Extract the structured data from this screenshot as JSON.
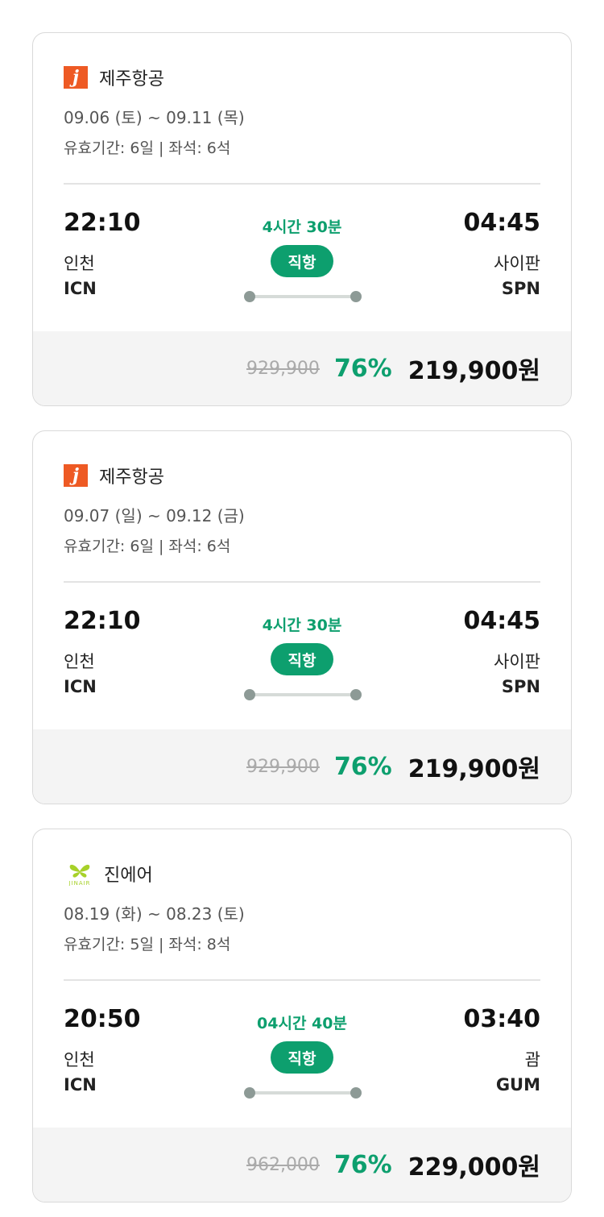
{
  "colors": {
    "accent": "#0d9f6e",
    "jeju_brand": "#ee5a24",
    "jinair_brand": "#a7d129"
  },
  "flights": [
    {
      "airline": "제주항공",
      "logo": "jeju-air-logo",
      "dates": "09.06 (토) ~ 09.11 (목)",
      "validity": "유효기간: 6일 | 좌석: 6석",
      "depart_time": "22:10",
      "depart_city": "인천",
      "depart_code": "ICN",
      "duration": "4시간 30분",
      "type": "직항",
      "arrive_time": "04:45",
      "arrive_city": "사이판",
      "arrive_code": "SPN",
      "original_price": "929,900",
      "discount": "76%",
      "price": "219,900원"
    },
    {
      "airline": "제주항공",
      "logo": "jeju-air-logo",
      "dates": "09.07 (일) ~ 09.12 (금)",
      "validity": "유효기간: 6일 | 좌석: 6석",
      "depart_time": "22:10",
      "depart_city": "인천",
      "depart_code": "ICN",
      "duration": "4시간 30분",
      "type": "직항",
      "arrive_time": "04:45",
      "arrive_city": "사이판",
      "arrive_code": "SPN",
      "original_price": "929,900",
      "discount": "76%",
      "price": "219,900원"
    },
    {
      "airline": "진에어",
      "logo": "jin-air-logo",
      "logo_text": "JINAIR",
      "dates": "08.19 (화) ~ 08.23 (토)",
      "validity": "유효기간: 5일 | 좌석: 8석",
      "depart_time": "20:50",
      "depart_city": "인천",
      "depart_code": "ICN",
      "duration": "04시간 40분",
      "type": "직항",
      "arrive_time": "03:40",
      "arrive_city": "괌",
      "arrive_code": "GUM",
      "original_price": "962,000",
      "discount": "76%",
      "price": "229,000원"
    }
  ]
}
